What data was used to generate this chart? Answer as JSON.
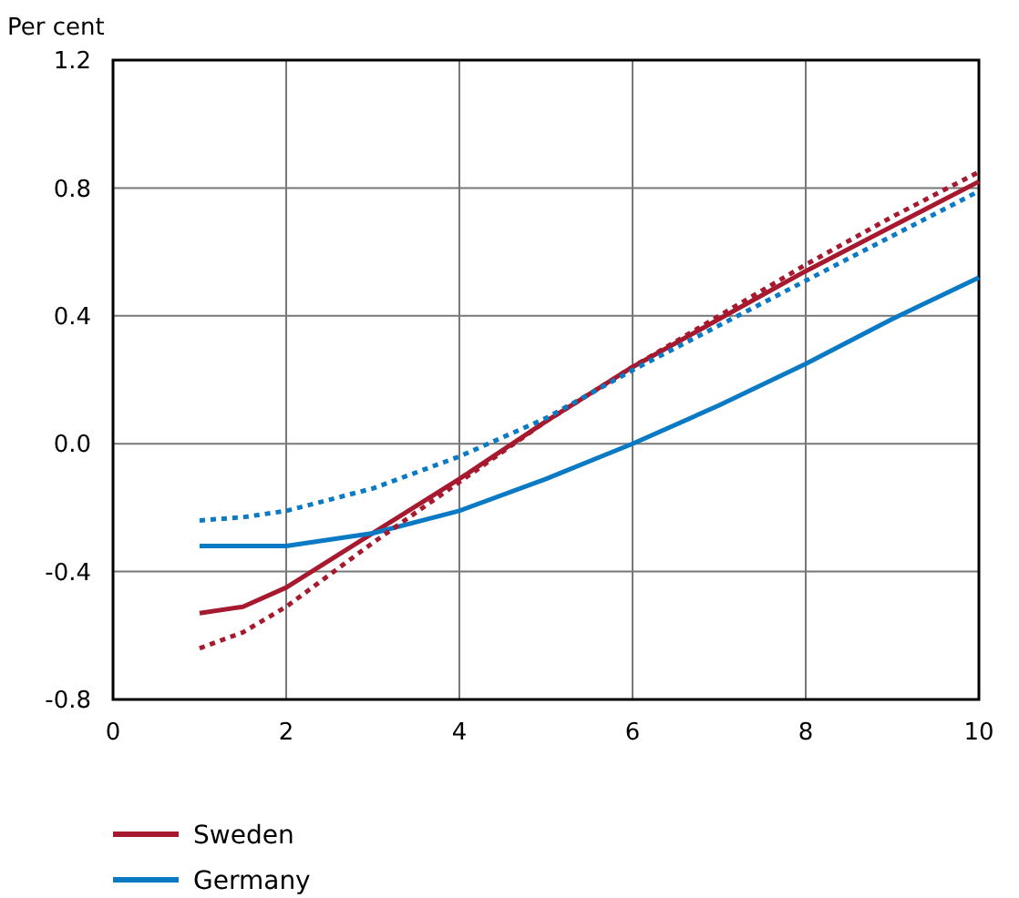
{
  "chart_data": {
    "type": "line",
    "ylabel": "Per cent",
    "x": [
      1,
      1.5,
      2,
      3,
      4,
      5,
      6,
      7,
      8,
      9,
      10
    ],
    "series": [
      {
        "name": "Sweden",
        "color": "#a6192e",
        "line_style": "solid",
        "values": [
          -0.53,
          -0.51,
          -0.45,
          -0.28,
          -0.11,
          0.07,
          0.24,
          0.39,
          0.54,
          0.68,
          0.82
        ]
      },
      {
        "name": "Germany",
        "color": "#0a7ac4",
        "line_style": "solid",
        "values": [
          -0.32,
          -0.32,
          -0.32,
          -0.28,
          -0.21,
          -0.11,
          0.0,
          0.12,
          0.25,
          0.39,
          0.52
        ]
      },
      {
        "color": "#a6192e",
        "line_style": "dotted",
        "values": [
          -0.64,
          -0.59,
          -0.51,
          -0.31,
          -0.12,
          0.07,
          0.24,
          0.4,
          0.56,
          0.71,
          0.85
        ]
      },
      {
        "color": "#0a7ac4",
        "line_style": "dotted",
        "values": [
          -0.24,
          -0.23,
          -0.21,
          -0.14,
          -0.04,
          0.08,
          0.23,
          0.37,
          0.51,
          0.65,
          0.79
        ]
      }
    ],
    "xlim": [
      0,
      10
    ],
    "xticks": [
      0,
      2,
      4,
      6,
      8,
      10
    ],
    "ylim": [
      -0.8,
      1.2
    ],
    "yticks": [
      {
        "value": -0.8,
        "label": "-0.8"
      },
      {
        "value": -0.4,
        "label": "-0.4"
      },
      {
        "value": 0,
        "label": "0.0"
      },
      {
        "value": 0.4,
        "label": "0.4"
      },
      {
        "value": 0.8,
        "label": "0.8"
      },
      {
        "value": 1.2,
        "label": "1.2"
      }
    ],
    "grid": true,
    "legend": "bottom"
  }
}
